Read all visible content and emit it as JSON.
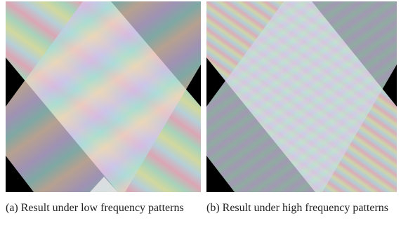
{
  "figures": [
    {
      "caption": "(a) Result under low frequency patterns"
    },
    {
      "caption": "(b) Result under high frequency patterns"
    }
  ]
}
